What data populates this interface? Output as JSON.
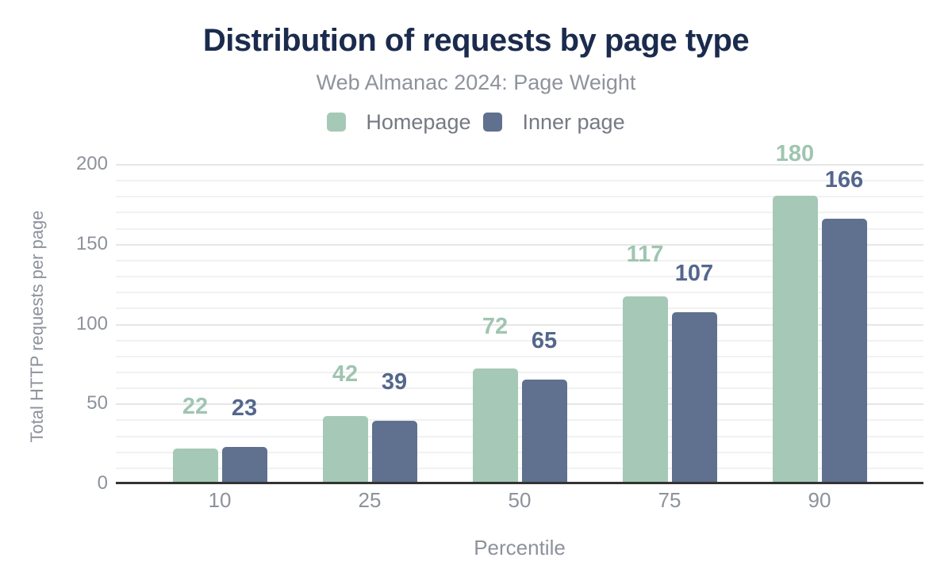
{
  "chart_data": {
    "type": "bar",
    "title": "Distribution of requests by page type",
    "subtitle": "Web Almanac 2024: Page Weight",
    "xlabel": "Percentile",
    "ylabel": "Total HTTP requests per page",
    "categories": [
      "10",
      "25",
      "50",
      "75",
      "90"
    ],
    "series": [
      {
        "name": "Homepage",
        "values": [
          22,
          42,
          72,
          117,
          180
        ],
        "color": "#a5c9b6",
        "label_color": "#9fc5b0"
      },
      {
        "name": "Inner page",
        "values": [
          23,
          39,
          65,
          107,
          166
        ],
        "color": "#5f718e",
        "label_color": "#54678c"
      }
    ],
    "ylim": [
      0,
      200
    ],
    "yticks": [
      "0",
      "50",
      "100",
      "150",
      "200"
    ],
    "grid": {
      "horizontal": true,
      "minor_step": 10,
      "major_step": 50
    },
    "legend_position": "top"
  },
  "colors": {
    "background": "#ffffff",
    "title": "#1b2b4d",
    "subtitle": "#8e939c",
    "axis_text": "#8d929b",
    "legend_text": "#757a82",
    "gridline_minor": "#f1f1f1",
    "gridline_major": "#e6e6e6",
    "baseline": "#333333"
  }
}
